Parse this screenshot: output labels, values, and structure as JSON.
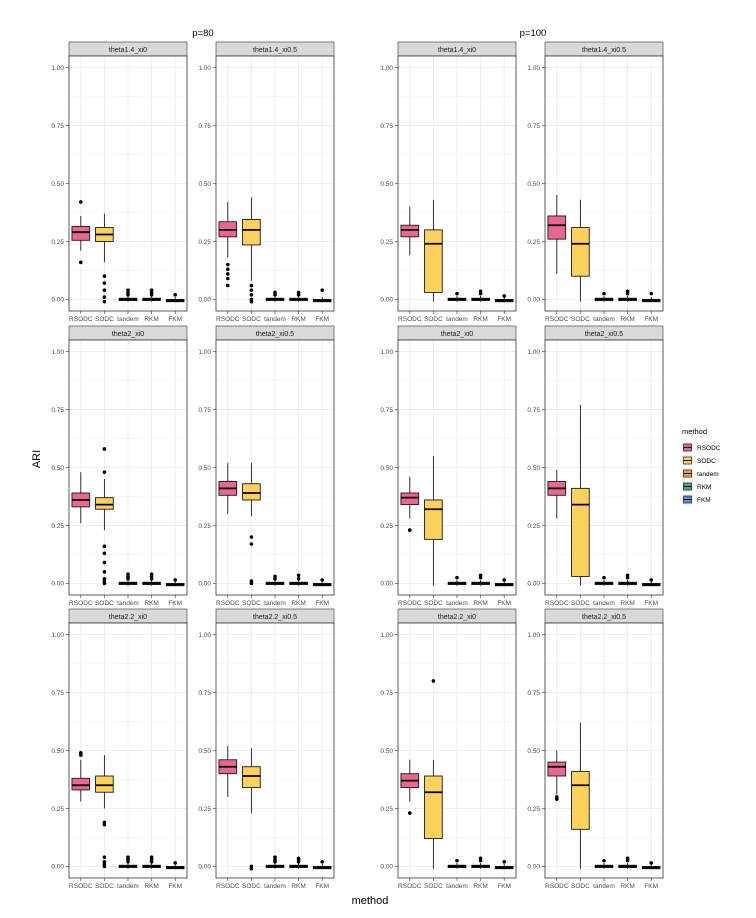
{
  "chart_data": {
    "type": "boxplot",
    "xlabel": "method",
    "ylabel": "ARI",
    "ylim": [
      -0.05,
      1.05
    ],
    "yticks": [
      "0.00",
      "0.25",
      "0.50",
      "0.75",
      "1.00"
    ],
    "group_titles": [
      "p=80",
      "p=100"
    ],
    "methods": [
      "RSODC",
      "SODC",
      "tandem",
      "RKM",
      "FKM"
    ],
    "colors": {
      "RSODC": "#e8688f",
      "SODC": "#fdd15e",
      "tandem": "#f0a04b",
      "RKM": "#4fa97a",
      "FKM": "#5b8bd1"
    },
    "legend": {
      "title": "method",
      "position": "right",
      "labels": [
        "RSODC",
        "SODC",
        "tandem",
        "RKM",
        "FKM"
      ]
    },
    "panels": [
      {
        "group": "p=80",
        "title": "theta1.4_xi0",
        "boxes": [
          {
            "method": "RSODC",
            "q1": 0.255,
            "median": 0.29,
            "q3": 0.315,
            "wlow": 0.21,
            "whigh": 0.36,
            "outliers": [
              0.16,
              0.42
            ]
          },
          {
            "method": "SODC",
            "q1": 0.25,
            "median": 0.28,
            "q3": 0.31,
            "wlow": 0.16,
            "whigh": 0.37,
            "outliers": [
              0.1,
              0.07,
              0.04,
              0.01,
              -0.01
            ]
          },
          {
            "method": "tandem",
            "q1": -0.005,
            "median": 0.0,
            "q3": 0.005,
            "wlow": -0.01,
            "whigh": 0.015,
            "outliers": [
              0.02,
              0.03,
              0.04
            ]
          },
          {
            "method": "RKM",
            "q1": -0.005,
            "median": 0.0,
            "q3": 0.005,
            "wlow": -0.01,
            "whigh": 0.015,
            "outliers": [
              0.02,
              0.03,
              0.04
            ]
          },
          {
            "method": "FKM",
            "q1": -0.01,
            "median": -0.005,
            "q3": 0.0,
            "wlow": -0.012,
            "whigh": 0.01,
            "outliers": [
              0.02
            ]
          }
        ]
      },
      {
        "group": "p=80",
        "title": "theta1.4_xi0.5",
        "boxes": [
          {
            "method": "RSODC",
            "q1": 0.27,
            "median": 0.3,
            "q3": 0.335,
            "wlow": 0.18,
            "whigh": 0.42,
            "outliers": [
              0.15,
              0.13,
              0.11,
              0.09,
              0.06
            ]
          },
          {
            "method": "SODC",
            "q1": 0.235,
            "median": 0.3,
            "q3": 0.345,
            "wlow": 0.08,
            "whigh": 0.44,
            "outliers": [
              0.06,
              0.04,
              0.02,
              0.0,
              -0.01
            ]
          },
          {
            "method": "tandem",
            "q1": -0.005,
            "median": 0.0,
            "q3": 0.005,
            "wlow": -0.01,
            "whigh": 0.015,
            "outliers": [
              0.02,
              0.03
            ]
          },
          {
            "method": "RKM",
            "q1": -0.005,
            "median": 0.0,
            "q3": 0.005,
            "wlow": -0.01,
            "whigh": 0.015,
            "outliers": [
              0.02,
              0.03
            ]
          },
          {
            "method": "FKM",
            "q1": -0.01,
            "median": -0.005,
            "q3": 0.0,
            "wlow": -0.012,
            "whigh": 0.01,
            "outliers": [
              0.04
            ]
          }
        ]
      },
      {
        "group": "p=100",
        "title": "theta1.4_xi0",
        "boxes": [
          {
            "method": "RSODC",
            "q1": 0.27,
            "median": 0.3,
            "q3": 0.32,
            "wlow": 0.19,
            "whigh": 0.4,
            "outliers": []
          },
          {
            "method": "SODC",
            "q1": 0.03,
            "median": 0.24,
            "q3": 0.3,
            "wlow": -0.01,
            "whigh": 0.43,
            "outliers": []
          },
          {
            "method": "tandem",
            "q1": -0.005,
            "median": 0.0,
            "q3": 0.005,
            "wlow": -0.01,
            "whigh": 0.015,
            "outliers": [
              0.025
            ]
          },
          {
            "method": "RKM",
            "q1": -0.005,
            "median": 0.0,
            "q3": 0.005,
            "wlow": -0.01,
            "whigh": 0.015,
            "outliers": [
              0.025,
              0.035
            ]
          },
          {
            "method": "FKM",
            "q1": -0.01,
            "median": -0.005,
            "q3": 0.0,
            "wlow": -0.012,
            "whigh": 0.01,
            "outliers": [
              0.015
            ]
          }
        ]
      },
      {
        "group": "p=100",
        "title": "theta1.4_xi0.5",
        "boxes": [
          {
            "method": "RSODC",
            "q1": 0.26,
            "median": 0.32,
            "q3": 0.36,
            "wlow": 0.11,
            "whigh": 0.45,
            "outliers": []
          },
          {
            "method": "SODC",
            "q1": 0.1,
            "median": 0.24,
            "q3": 0.31,
            "wlow": -0.01,
            "whigh": 0.43,
            "outliers": []
          },
          {
            "method": "tandem",
            "q1": -0.005,
            "median": 0.0,
            "q3": 0.005,
            "wlow": -0.01,
            "whigh": 0.015,
            "outliers": [
              0.025
            ]
          },
          {
            "method": "RKM",
            "q1": -0.005,
            "median": 0.0,
            "q3": 0.005,
            "wlow": -0.01,
            "whigh": 0.015,
            "outliers": [
              0.025,
              0.035
            ]
          },
          {
            "method": "FKM",
            "q1": -0.01,
            "median": -0.005,
            "q3": 0.0,
            "wlow": -0.012,
            "whigh": 0.01,
            "outliers": [
              0.025
            ]
          }
        ]
      },
      {
        "group": "p=80",
        "title": "theta2_xi0",
        "boxes": [
          {
            "method": "RSODC",
            "q1": 0.33,
            "median": 0.36,
            "q3": 0.39,
            "wlow": 0.26,
            "whigh": 0.48,
            "outliers": []
          },
          {
            "method": "SODC",
            "q1": 0.32,
            "median": 0.34,
            "q3": 0.37,
            "wlow": 0.23,
            "whigh": 0.45,
            "outliers": [
              0.58,
              0.48,
              0.16,
              0.13,
              0.09,
              0.05,
              0.02,
              0.01,
              0.0
            ]
          },
          {
            "method": "tandem",
            "q1": -0.005,
            "median": 0.0,
            "q3": 0.005,
            "wlow": -0.01,
            "whigh": 0.015,
            "outliers": [
              0.02,
              0.03,
              0.04
            ]
          },
          {
            "method": "RKM",
            "q1": -0.005,
            "median": 0.0,
            "q3": 0.005,
            "wlow": -0.01,
            "whigh": 0.015,
            "outliers": [
              0.02,
              0.03,
              0.04
            ]
          },
          {
            "method": "FKM",
            "q1": -0.01,
            "median": -0.005,
            "q3": 0.0,
            "wlow": -0.012,
            "whigh": 0.01,
            "outliers": [
              0.015
            ]
          }
        ]
      },
      {
        "group": "p=80",
        "title": "theta2_xi0.5",
        "boxes": [
          {
            "method": "RSODC",
            "q1": 0.38,
            "median": 0.41,
            "q3": 0.44,
            "wlow": 0.3,
            "whigh": 0.52,
            "outliers": []
          },
          {
            "method": "SODC",
            "q1": 0.36,
            "median": 0.39,
            "q3": 0.43,
            "wlow": 0.29,
            "whigh": 0.52,
            "outliers": [
              0.2,
              0.17,
              0.01,
              0.0
            ]
          },
          {
            "method": "tandem",
            "q1": -0.005,
            "median": 0.0,
            "q3": 0.005,
            "wlow": -0.01,
            "whigh": 0.015,
            "outliers": [
              0.02,
              0.03
            ]
          },
          {
            "method": "RKM",
            "q1": -0.005,
            "median": 0.0,
            "q3": 0.005,
            "wlow": -0.01,
            "whigh": 0.015,
            "outliers": [
              0.02,
              0.035
            ]
          },
          {
            "method": "FKM",
            "q1": -0.01,
            "median": -0.005,
            "q3": 0.0,
            "wlow": -0.012,
            "whigh": 0.01,
            "outliers": [
              0.015
            ]
          }
        ]
      },
      {
        "group": "p=100",
        "title": "theta2_xi0",
        "boxes": [
          {
            "method": "RSODC",
            "q1": 0.34,
            "median": 0.37,
            "q3": 0.39,
            "wlow": 0.28,
            "whigh": 0.46,
            "outliers": [
              0.23
            ]
          },
          {
            "method": "SODC",
            "q1": 0.19,
            "median": 0.32,
            "q3": 0.36,
            "wlow": -0.01,
            "whigh": 0.55,
            "outliers": []
          },
          {
            "method": "tandem",
            "q1": -0.005,
            "median": 0.0,
            "q3": 0.005,
            "wlow": -0.01,
            "whigh": 0.015,
            "outliers": [
              0.025
            ]
          },
          {
            "method": "RKM",
            "q1": -0.005,
            "median": 0.0,
            "q3": 0.005,
            "wlow": -0.01,
            "whigh": 0.015,
            "outliers": [
              0.025,
              0.035
            ]
          },
          {
            "method": "FKM",
            "q1": -0.01,
            "median": -0.005,
            "q3": 0.0,
            "wlow": -0.012,
            "whigh": 0.01,
            "outliers": [
              0.015
            ]
          }
        ]
      },
      {
        "group": "p=100",
        "title": "theta2_xi0.5",
        "boxes": [
          {
            "method": "RSODC",
            "q1": 0.38,
            "median": 0.41,
            "q3": 0.44,
            "wlow": 0.28,
            "whigh": 0.49,
            "outliers": []
          },
          {
            "method": "SODC",
            "q1": 0.03,
            "median": 0.34,
            "q3": 0.41,
            "wlow": -0.01,
            "whigh": 0.77,
            "outliers": []
          },
          {
            "method": "tandem",
            "q1": -0.005,
            "median": 0.0,
            "q3": 0.005,
            "wlow": -0.01,
            "whigh": 0.015,
            "outliers": [
              0.025
            ]
          },
          {
            "method": "RKM",
            "q1": -0.005,
            "median": 0.0,
            "q3": 0.005,
            "wlow": -0.01,
            "whigh": 0.015,
            "outliers": [
              0.025,
              0.035
            ]
          },
          {
            "method": "FKM",
            "q1": -0.01,
            "median": -0.005,
            "q3": 0.0,
            "wlow": -0.012,
            "whigh": 0.01,
            "outliers": [
              0.015
            ]
          }
        ]
      },
      {
        "group": "p=80",
        "title": "theta2.2_xi0",
        "boxes": [
          {
            "method": "RSODC",
            "q1": 0.33,
            "median": 0.35,
            "q3": 0.38,
            "wlow": 0.28,
            "whigh": 0.46,
            "outliers": [
              0.49,
              0.48
            ]
          },
          {
            "method": "SODC",
            "q1": 0.32,
            "median": 0.35,
            "q3": 0.39,
            "wlow": 0.25,
            "whigh": 0.48,
            "outliers": [
              0.19,
              0.18,
              0.04,
              0.02,
              0.01,
              0.0
            ]
          },
          {
            "method": "tandem",
            "q1": -0.005,
            "median": 0.0,
            "q3": 0.005,
            "wlow": -0.01,
            "whigh": 0.015,
            "outliers": [
              0.02,
              0.03,
              0.04
            ]
          },
          {
            "method": "RKM",
            "q1": -0.005,
            "median": 0.0,
            "q3": 0.005,
            "wlow": -0.01,
            "whigh": 0.015,
            "outliers": [
              0.02,
              0.03,
              0.04
            ]
          },
          {
            "method": "FKM",
            "q1": -0.01,
            "median": -0.005,
            "q3": 0.0,
            "wlow": -0.012,
            "whigh": 0.01,
            "outliers": [
              0.015
            ]
          }
        ]
      },
      {
        "group": "p=80",
        "title": "theta2.2_xi0.5",
        "boxes": [
          {
            "method": "RSODC",
            "q1": 0.4,
            "median": 0.43,
            "q3": 0.46,
            "wlow": 0.3,
            "whigh": 0.52,
            "outliers": []
          },
          {
            "method": "SODC",
            "q1": 0.34,
            "median": 0.39,
            "q3": 0.43,
            "wlow": 0.23,
            "whigh": 0.51,
            "outliers": [
              0.0,
              -0.01
            ]
          },
          {
            "method": "tandem",
            "q1": -0.005,
            "median": 0.0,
            "q3": 0.005,
            "wlow": -0.01,
            "whigh": 0.015,
            "outliers": [
              0.02,
              0.03,
              0.04
            ]
          },
          {
            "method": "RKM",
            "q1": -0.005,
            "median": 0.0,
            "q3": 0.005,
            "wlow": -0.01,
            "whigh": 0.015,
            "outliers": [
              0.02,
              0.03,
              0.035
            ]
          },
          {
            "method": "FKM",
            "q1": -0.01,
            "median": -0.005,
            "q3": 0.0,
            "wlow": -0.012,
            "whigh": 0.01,
            "outliers": [
              0.02
            ]
          }
        ]
      },
      {
        "group": "p=100",
        "title": "theta2.2_xi0",
        "boxes": [
          {
            "method": "RSODC",
            "q1": 0.34,
            "median": 0.37,
            "q3": 0.4,
            "wlow": 0.28,
            "whigh": 0.46,
            "outliers": [
              0.23
            ]
          },
          {
            "method": "SODC",
            "q1": 0.12,
            "median": 0.32,
            "q3": 0.39,
            "wlow": -0.01,
            "whigh": 0.46,
            "outliers": [
              0.8
            ]
          },
          {
            "method": "tandem",
            "q1": -0.005,
            "median": 0.0,
            "q3": 0.005,
            "wlow": -0.01,
            "whigh": 0.015,
            "outliers": [
              0.025
            ]
          },
          {
            "method": "RKM",
            "q1": -0.005,
            "median": 0.0,
            "q3": 0.005,
            "wlow": -0.01,
            "whigh": 0.015,
            "outliers": [
              0.025,
              0.035
            ]
          },
          {
            "method": "FKM",
            "q1": -0.01,
            "median": -0.005,
            "q3": 0.0,
            "wlow": -0.012,
            "whigh": 0.01,
            "outliers": [
              0.02
            ]
          }
        ]
      },
      {
        "group": "p=100",
        "title": "theta2.2_xi0.5",
        "boxes": [
          {
            "method": "RSODC",
            "q1": 0.39,
            "median": 0.43,
            "q3": 0.45,
            "wlow": 0.31,
            "whigh": 0.5,
            "outliers": [
              0.3,
              0.29
            ]
          },
          {
            "method": "SODC",
            "q1": 0.16,
            "median": 0.35,
            "q3": 0.41,
            "wlow": -0.01,
            "whigh": 0.62,
            "outliers": []
          },
          {
            "method": "tandem",
            "q1": -0.005,
            "median": 0.0,
            "q3": 0.005,
            "wlow": -0.01,
            "whigh": 0.015,
            "outliers": [
              0.025
            ]
          },
          {
            "method": "RKM",
            "q1": -0.005,
            "median": 0.0,
            "q3": 0.005,
            "wlow": -0.01,
            "whigh": 0.015,
            "outliers": [
              0.025,
              0.035
            ]
          },
          {
            "method": "FKM",
            "q1": -0.01,
            "median": -0.005,
            "q3": 0.0,
            "wlow": -0.012,
            "whigh": 0.01,
            "outliers": [
              0.015
            ]
          }
        ]
      }
    ]
  }
}
